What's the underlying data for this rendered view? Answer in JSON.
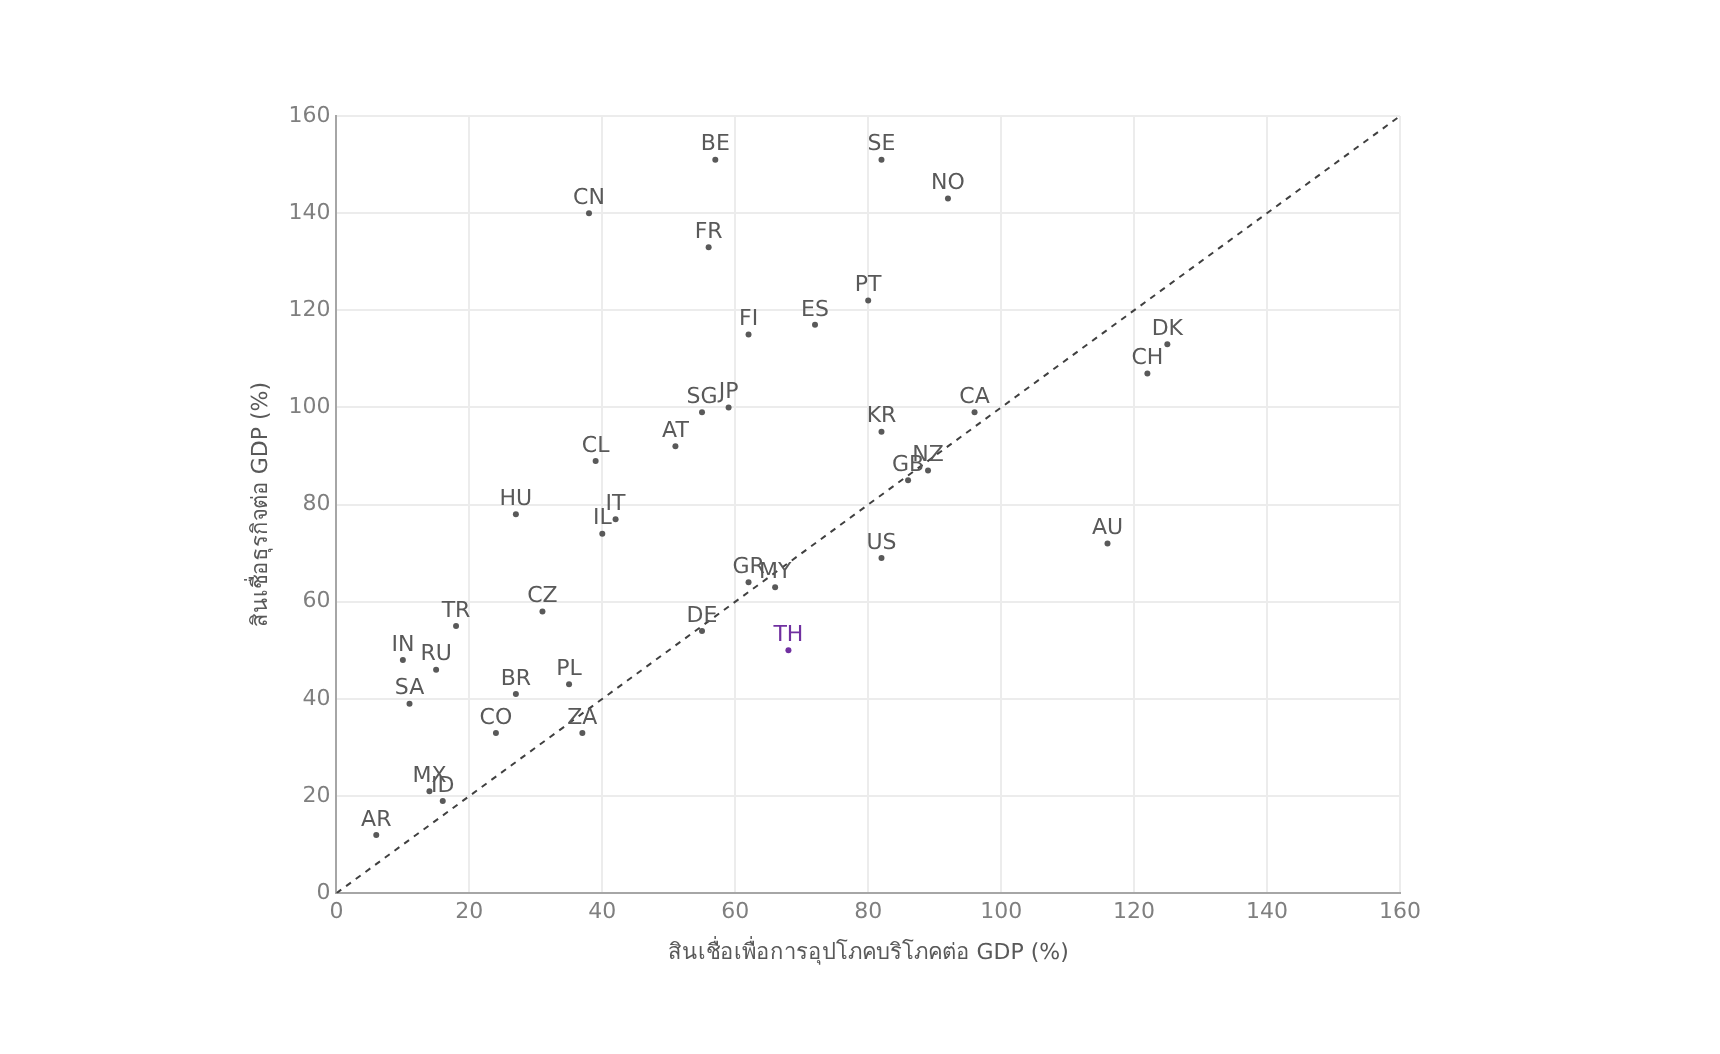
{
  "chart_data": {
    "type": "scatter",
    "xlabel": "สินเชื่อเพื่อการอุปโภคบริโภคต่อ GDP (%)",
    "ylabel": "สินเชื่อธุรกิจต่อ GDP (%)",
    "xlim": [
      0,
      160
    ],
    "ylim": [
      0,
      160
    ],
    "xticks": [
      0,
      20,
      40,
      60,
      80,
      100,
      120,
      140,
      160
    ],
    "yticks": [
      0,
      20,
      40,
      60,
      80,
      100,
      120,
      140,
      160
    ],
    "grid": true,
    "legend": false,
    "marker": "circle",
    "series": [
      {
        "type": "line",
        "line_style": "dashed",
        "marker": "none",
        "color": "#404040",
        "x": [
          0,
          160
        ],
        "values": [
          0,
          160
        ]
      },
      {
        "name": "BE",
        "color": "#595959",
        "x": [
          57
        ],
        "values": [
          151
        ]
      },
      {
        "name": "SE",
        "color": "#595959",
        "x": [
          82
        ],
        "values": [
          151
        ]
      },
      {
        "name": "NO",
        "color": "#595959",
        "x": [
          92
        ],
        "values": [
          143
        ]
      },
      {
        "name": "CN",
        "color": "#595959",
        "x": [
          38
        ],
        "values": [
          140
        ]
      },
      {
        "name": "FR",
        "color": "#595959",
        "x": [
          56
        ],
        "values": [
          133
        ]
      },
      {
        "name": "PT",
        "color": "#595959",
        "x": [
          80
        ],
        "values": [
          122
        ]
      },
      {
        "name": "FI",
        "color": "#595959",
        "x": [
          62
        ],
        "values": [
          115
        ]
      },
      {
        "name": "ES",
        "color": "#595959",
        "x": [
          72
        ],
        "values": [
          117
        ]
      },
      {
        "name": "DK",
        "color": "#595959",
        "x": [
          125
        ],
        "values": [
          113
        ]
      },
      {
        "name": "CH",
        "color": "#595959",
        "x": [
          122
        ],
        "values": [
          107
        ]
      },
      {
        "name": "CA",
        "color": "#595959",
        "x": [
          96
        ],
        "values": [
          99
        ]
      },
      {
        "name": "SG",
        "color": "#595959",
        "x": [
          55
        ],
        "values": [
          99
        ]
      },
      {
        "name": "JP",
        "color": "#595959",
        "x": [
          59
        ],
        "values": [
          100
        ]
      },
      {
        "name": "KR",
        "color": "#595959",
        "x": [
          82
        ],
        "values": [
          95
        ]
      },
      {
        "name": "AT",
        "color": "#595959",
        "x": [
          51
        ],
        "values": [
          92
        ]
      },
      {
        "name": "CL",
        "color": "#595959",
        "x": [
          39
        ],
        "values": [
          89
        ]
      },
      {
        "name": "NZ",
        "color": "#595959",
        "x": [
          89
        ],
        "values": [
          87
        ]
      },
      {
        "name": "GB",
        "color": "#595959",
        "x": [
          86
        ],
        "values": [
          85
        ]
      },
      {
        "name": "HU",
        "color": "#595959",
        "x": [
          27
        ],
        "values": [
          78
        ]
      },
      {
        "name": "IT",
        "color": "#595959",
        "x": [
          42
        ],
        "values": [
          77
        ]
      },
      {
        "name": "IL",
        "color": "#595959",
        "x": [
          40
        ],
        "values": [
          74
        ]
      },
      {
        "name": "AU",
        "color": "#595959",
        "x": [
          116
        ],
        "values": [
          72
        ]
      },
      {
        "name": "US",
        "color": "#595959",
        "x": [
          82
        ],
        "values": [
          69
        ]
      },
      {
        "name": "GR",
        "color": "#595959",
        "x": [
          62
        ],
        "values": [
          64
        ]
      },
      {
        "name": "MY",
        "color": "#595959",
        "x": [
          66
        ],
        "values": [
          63
        ]
      },
      {
        "name": "CZ",
        "color": "#595959",
        "x": [
          31
        ],
        "values": [
          58
        ]
      },
      {
        "name": "DE",
        "color": "#595959",
        "x": [
          55
        ],
        "values": [
          54
        ]
      },
      {
        "name": "TR",
        "color": "#595959",
        "x": [
          18
        ],
        "values": [
          55
        ]
      },
      {
        "name": "TH",
        "color": "#7030a0",
        "x": [
          68
        ],
        "values": [
          50
        ]
      },
      {
        "name": "IN",
        "color": "#595959",
        "x": [
          10
        ],
        "values": [
          48
        ]
      },
      {
        "name": "RU",
        "color": "#595959",
        "x": [
          15
        ],
        "values": [
          46
        ]
      },
      {
        "name": "PL",
        "color": "#595959",
        "x": [
          35
        ],
        "values": [
          43
        ]
      },
      {
        "name": "BR",
        "color": "#595959",
        "x": [
          27
        ],
        "values": [
          41
        ]
      },
      {
        "name": "SA",
        "color": "#595959",
        "x": [
          11
        ],
        "values": [
          39
        ]
      },
      {
        "name": "CO",
        "color": "#595959",
        "x": [
          24
        ],
        "values": [
          33
        ]
      },
      {
        "name": "ZA",
        "color": "#595959",
        "x": [
          37
        ],
        "values": [
          33
        ]
      },
      {
        "name": "MX",
        "color": "#595959",
        "x": [
          14
        ],
        "values": [
          21
        ]
      },
      {
        "name": "ID",
        "color": "#595959",
        "x": [
          16
        ],
        "values": [
          19
        ]
      },
      {
        "name": "AR",
        "color": "#595959",
        "x": [
          6
        ],
        "values": [
          12
        ]
      }
    ]
  }
}
